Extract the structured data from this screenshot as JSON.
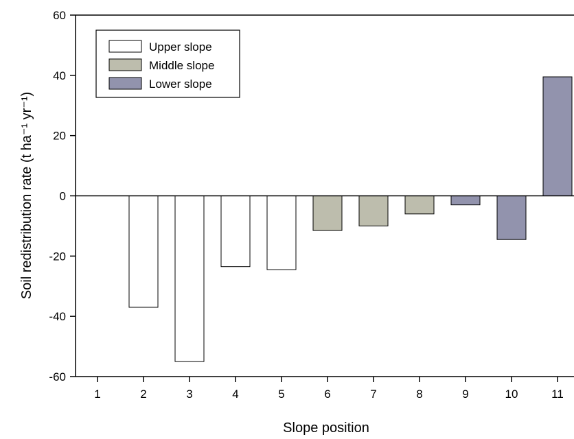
{
  "chart_data": {
    "type": "bar",
    "title": "",
    "xlabel": "Slope position",
    "ylabel": "Soil redistribution rate (t ha⁻¹ yr⁻¹)",
    "ylim": [
      -60,
      60
    ],
    "yticks": [
      -60,
      -40,
      -20,
      0,
      20,
      40,
      60
    ],
    "categories": [
      "1",
      "2",
      "3",
      "4",
      "5",
      "6",
      "7",
      "8",
      "9",
      "10",
      "11"
    ],
    "values": [
      0,
      -37,
      -55,
      -23.5,
      -24.5,
      -11.5,
      -10,
      -6,
      -3,
      -14.5,
      39.5
    ],
    "groups": [
      "Upper slope",
      "Upper slope",
      "Upper slope",
      "Upper slope",
      "Upper slope",
      "Middle slope",
      "Middle slope",
      "Middle slope",
      "Lower slope",
      "Lower slope",
      "Lower slope"
    ],
    "legend": {
      "position": "top-left",
      "entries": [
        {
          "name": "Upper slope",
          "color": "#ffffff"
        },
        {
          "name": "Middle slope",
          "color": "#bdbdad"
        },
        {
          "name": "Lower slope",
          "color": "#9293ad"
        }
      ]
    },
    "grid": false
  }
}
